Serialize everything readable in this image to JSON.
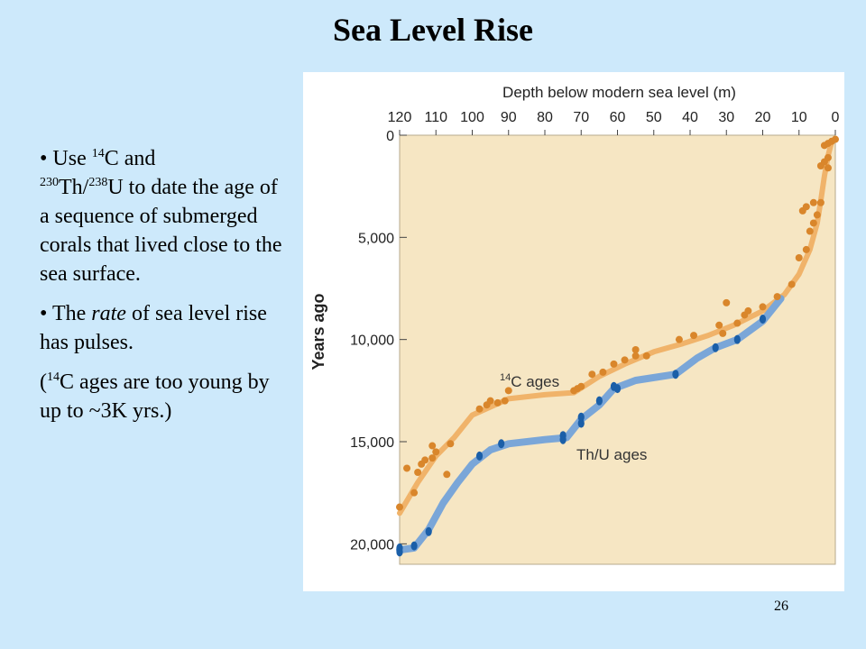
{
  "slide": {
    "title": "Sea Level Rise",
    "bullet1": {
      "prefix": "• Use ",
      "sup1": "14",
      "mid1": "C and ",
      "sup2": "230",
      "mid2": "Th/",
      "sup3": "238",
      "rest": "U to date the age of a sequence of submerged corals that lived close to the sea surface."
    },
    "bullet2": {
      "prefix": "•  The ",
      "em": "rate",
      "rest": " of sea level rise has pulses."
    },
    "note": {
      "prefix": "(",
      "sup": "14",
      "rest": "C ages are too young by up to ~3K yrs.)"
    },
    "page_number": "26"
  },
  "chart_data": {
    "type": "scatter",
    "title": "",
    "xlabel": "Depth below modern sea level (m)",
    "ylabel": "Years ago",
    "xlim": [
      120,
      0
    ],
    "ylim": [
      0,
      21000
    ],
    "x_ticks": [
      120,
      110,
      100,
      90,
      80,
      70,
      60,
      50,
      40,
      30,
      20,
      10,
      0
    ],
    "y_ticks": [
      {
        "value": 0,
        "label": "0"
      },
      {
        "value": 5000,
        "label": "5,000"
      },
      {
        "value": 10000,
        "label": "10,000"
      },
      {
        "value": 15000,
        "label": "15,000"
      },
      {
        "value": 20000,
        "label": "20,000"
      }
    ],
    "grid": false,
    "colors": {
      "plot_bg": "#f6e6c3",
      "c14_points": "#d9862b",
      "c14_line": "#f0b36a",
      "thu_points": "#1b5fa8",
      "thu_line": "#7aa6d8",
      "axis": "#444444"
    },
    "series": [
      {
        "name": "¹⁴C ages",
        "label_sup": "14",
        "label_text": "C ages",
        "points": [
          [
            120,
            18200
          ],
          [
            118,
            16300
          ],
          [
            116,
            17500
          ],
          [
            115,
            16500
          ],
          [
            114,
            16100
          ],
          [
            113,
            15900
          ],
          [
            111,
            15800
          ],
          [
            110,
            15500
          ],
          [
            111,
            15200
          ],
          [
            107,
            16600
          ],
          [
            106,
            15100
          ],
          [
            98,
            13400
          ],
          [
            96,
            13200
          ],
          [
            95,
            13000
          ],
          [
            93,
            13100
          ],
          [
            91,
            13000
          ],
          [
            90,
            12500
          ],
          [
            72,
            12500
          ],
          [
            71,
            12400
          ],
          [
            70,
            12300
          ],
          [
            67,
            11700
          ],
          [
            64,
            11600
          ],
          [
            61,
            11200
          ],
          [
            58,
            11000
          ],
          [
            55,
            10800
          ],
          [
            55,
            10500
          ],
          [
            52,
            10800
          ],
          [
            43,
            10000
          ],
          [
            39,
            9800
          ],
          [
            32,
            9300
          ],
          [
            31,
            9700
          ],
          [
            30,
            8200
          ],
          [
            27,
            9200
          ],
          [
            25,
            8800
          ],
          [
            24,
            8600
          ],
          [
            20,
            8400
          ],
          [
            16,
            7900
          ],
          [
            12,
            7300
          ],
          [
            10,
            6000
          ],
          [
            8,
            5600
          ],
          [
            7,
            4700
          ],
          [
            6,
            4300
          ],
          [
            5,
            3900
          ],
          [
            4,
            3300
          ],
          [
            6,
            3300
          ],
          [
            9,
            3700
          ],
          [
            8,
            3500
          ],
          [
            4,
            1500
          ],
          [
            3,
            1300
          ],
          [
            2,
            1600
          ],
          [
            2,
            1100
          ],
          [
            3,
            500
          ],
          [
            2,
            400
          ],
          [
            1,
            300
          ],
          [
            0,
            200
          ]
        ],
        "curve": [
          [
            120,
            18500
          ],
          [
            115,
            17000
          ],
          [
            110,
            15700
          ],
          [
            105,
            14800
          ],
          [
            100,
            13700
          ],
          [
            95,
            13300
          ],
          [
            90,
            12900
          ],
          [
            80,
            12700
          ],
          [
            72,
            12600
          ],
          [
            65,
            11800
          ],
          [
            58,
            11200
          ],
          [
            50,
            10600
          ],
          [
            42,
            10200
          ],
          [
            35,
            9800
          ],
          [
            28,
            9300
          ],
          [
            20,
            8600
          ],
          [
            14,
            7800
          ],
          [
            10,
            6800
          ],
          [
            7,
            5600
          ],
          [
            5,
            4300
          ],
          [
            4,
            3200
          ],
          [
            3,
            2000
          ],
          [
            2,
            1000
          ],
          [
            1,
            300
          ]
        ]
      },
      {
        "name": "Th/U ages",
        "points": [
          [
            120,
            20200
          ],
          [
            120,
            20400
          ],
          [
            116,
            20100
          ],
          [
            112,
            19400
          ],
          [
            98,
            15700
          ],
          [
            92,
            15100
          ],
          [
            75,
            14700
          ],
          [
            75,
            14900
          ],
          [
            70,
            13800
          ],
          [
            70,
            14100
          ],
          [
            65,
            13000
          ],
          [
            61,
            12300
          ],
          [
            60,
            12400
          ],
          [
            44,
            11700
          ],
          [
            33,
            10400
          ],
          [
            27,
            10000
          ],
          [
            20,
            9000
          ]
        ],
        "curve": [
          [
            120,
            20300
          ],
          [
            116,
            20200
          ],
          [
            112,
            19300
          ],
          [
            108,
            18000
          ],
          [
            104,
            17000
          ],
          [
            100,
            16100
          ],
          [
            95,
            15400
          ],
          [
            90,
            15100
          ],
          [
            80,
            14900
          ],
          [
            74,
            14800
          ],
          [
            70,
            13900
          ],
          [
            65,
            13200
          ],
          [
            61,
            12400
          ],
          [
            55,
            12000
          ],
          [
            44,
            11700
          ],
          [
            38,
            10900
          ],
          [
            33,
            10400
          ],
          [
            27,
            10000
          ],
          [
            20,
            9100
          ],
          [
            15,
            8000
          ]
        ]
      }
    ]
  }
}
